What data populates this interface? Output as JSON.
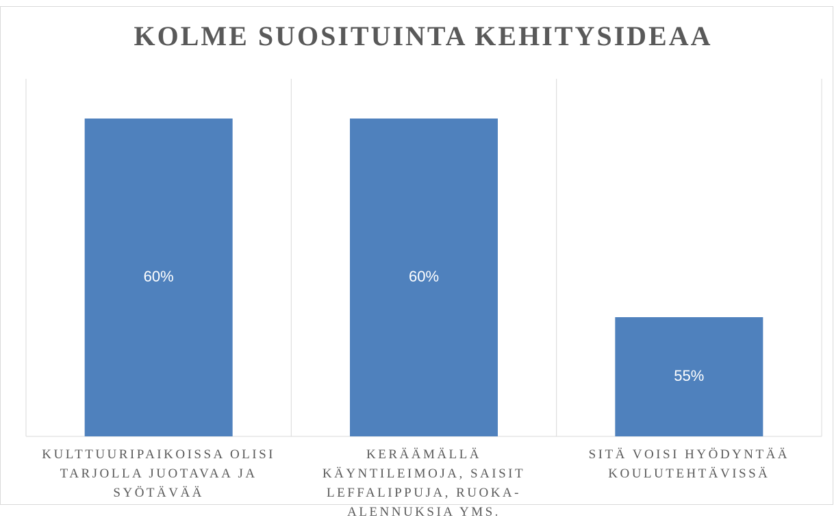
{
  "chart_data": {
    "type": "bar",
    "title": "KOLME SUOSITUINTA KEHITYSIDEAA",
    "categories": [
      "KULTTUURIPAIKOISSA OLISI TARJOLLA JUOTAVAA JA SYÖTÄVÄÄ",
      "KERÄÄMÄLLÄ KÄYNTILEIMOJA, SAISIT LEFFALIPPUJA, RUOKA-ALENNUKSIA YMS.",
      "SITÄ VOISI HYÖDYNTÄÄ KOULUTEHTÄVISSÄ"
    ],
    "values": [
      60,
      60,
      55
    ],
    "value_labels": [
      "60%",
      "60%",
      "55%"
    ],
    "color": "#4f81bd",
    "ylim": [
      52,
      61
    ],
    "grid": true
  }
}
